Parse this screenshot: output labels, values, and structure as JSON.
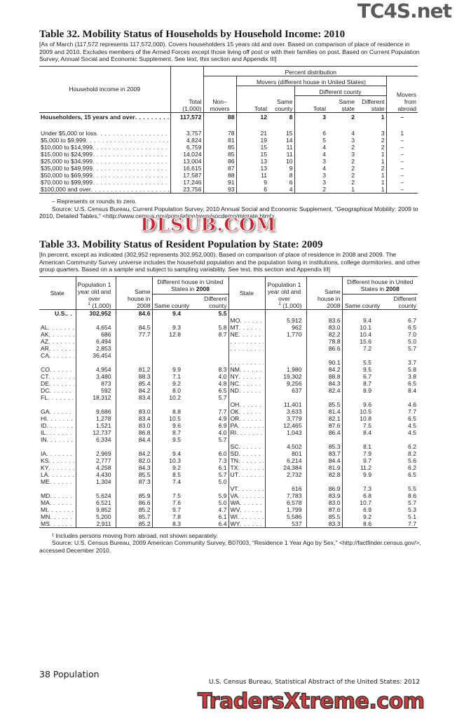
{
  "table32": {
    "title": "Table 32. Mobility Status of Households by Household Income: 2010",
    "headnote": "[As of March (117,572 represents 117,572,000). Covers householders 15 years old and over. Based on comparison of place of residence in 2009 and 2010. Excludes members of the Armed Forces except those living off post or with their families on post. Based on Current Population Survey, Annual Social and Economic Supplement. See text, this section and Appendix III]",
    "headers": {
      "label": "Household income in 2009",
      "total": "Total (1,000)",
      "percent_distribution": "Percent distribution",
      "nonmovers": "Non– movers",
      "movers": "Movers (different house in United States)",
      "movers_total": "Total",
      "same_county": "Same county",
      "different_county": "Different county",
      "dc_total": "Total",
      "same_state": "Same state",
      "different_state": "Different state",
      "abroad": "Movers from abroad"
    },
    "total_row": [
      "Householders, 15 years and over",
      "117,572",
      "88",
      "12",
      "8",
      "3",
      "2",
      "1",
      "–"
    ],
    "rows": [
      [
        "Under $5,000 or loss",
        "3,757",
        "78",
        "21",
        "15",
        "6",
        "4",
        "3",
        "1"
      ],
      [
        "$5,000 to $9,999",
        "4,824",
        "81",
        "19",
        "14",
        "5",
        "3",
        "2",
        "–"
      ],
      [
        "$10,000 to $14,999",
        "6,759",
        "85",
        "15",
        "11",
        "4",
        "2",
        "2",
        "–"
      ],
      [
        "$15,000 to $24,999",
        "14,024",
        "85",
        "15",
        "11",
        "4",
        "3",
        "1",
        "–"
      ],
      [
        "$25,000 to $34,999",
        "13,004",
        "86",
        "13",
        "10",
        "3",
        "2",
        "1",
        "–"
      ],
      [
        "$35,000 to $49,999",
        "16,615",
        "87",
        "13",
        "9",
        "4",
        "2",
        "2",
        "–"
      ],
      [
        "$50,000 to $69,999",
        "17,587",
        "88",
        "11",
        "8",
        "3",
        "2",
        "1",
        "–"
      ],
      [
        "$70,000 to $99,999",
        "17,246",
        "91",
        "9",
        "6",
        "3",
        "2",
        "1",
        "–"
      ],
      [
        "$100,000 and over",
        "23,756",
        "93",
        "6",
        "4",
        "2",
        "1",
        "1",
        "–"
      ]
    ],
    "notes": [
      "– Represents or rounds to zero.",
      "Source: U.S. Census Bureau, Current Population Survey, 2010 Annual Social and Economic Supplement, “Geographical Mobility: 2009 to 2010, Detailed Tables,” <http://www.census.gov/population/www/socdemo/migrate.html>."
    ]
  },
  "table33": {
    "title": "Table 33. Mobility Status of Resident Population by State: 2009",
    "headnote": "[In percent, except as indicated (302,952 represents 302,952,000). Based on comparison of place of residence in 2008 and 2009. The American Community Survey universe includes the household population and the population living in institutions, college dormitories, and other group quarters. Based on a sample and subject to sampling variability. See text, this section and Appendix III]",
    "headers": {
      "state": "State",
      "population": "Population 1 year old and over",
      "population_unit": "(1,000)",
      "footnote_mark": "1",
      "same_house": "Same house in 2008",
      "different_house": "Different house in United States in",
      "different_house_year": "2008",
      "same_county": "Same county",
      "different_county": "Different county"
    },
    "left": [
      [
        "U.S.",
        "302,952",
        "84.6",
        "9.4",
        "5.5"
      ],
      null,
      [
        "AL",
        "4,654",
        "84.5",
        "9.3",
        "5.8"
      ],
      [
        "AK",
        "686",
        "77.7",
        "12.8",
        "8.7"
      ],
      [
        "AZ",
        "6,494",
        "",
        "",
        ""
      ],
      [
        "AR",
        "2,853",
        "",
        "",
        ""
      ],
      [
        "CA",
        "36,454",
        "",
        "",
        ""
      ],
      null,
      [
        "CO",
        "4,954",
        "81.2",
        "9.9",
        "8.3"
      ],
      [
        "CT",
        "3,480",
        "88.3",
        "7.1",
        "4.0"
      ],
      [
        "DE",
        "873",
        "85.4",
        "9.2",
        "4.8"
      ],
      [
        "DC",
        "592",
        "84.2",
        "8.0",
        "6.5"
      ],
      [
        "FL",
        "18,312",
        "83.4",
        "10.2",
        "5.7"
      ],
      null,
      [
        "GA",
        "9,686",
        "83.0",
        "8.8",
        "7.7"
      ],
      [
        "HI",
        "1,278",
        "83.4",
        "10.5",
        "4.9"
      ],
      [
        "ID",
        "1,521",
        "83.0",
        "9.6",
        "6.9"
      ],
      [
        "IL",
        "12,737",
        "86.8",
        "8.7",
        "4.0"
      ],
      [
        "IN",
        "6,334",
        "84.4",
        "9.5",
        "5.7"
      ],
      null,
      [
        "IA",
        "2,969",
        "84.2",
        "9.4",
        "6.0"
      ],
      [
        "KS",
        "2,777",
        "82.0",
        "10.3",
        "7.3"
      ],
      [
        "KY",
        "4,258",
        "84.3",
        "9.2",
        "6.1"
      ],
      [
        "LA",
        "4,430",
        "85.5",
        "8.5",
        "5.7"
      ],
      [
        "ME",
        "1,304",
        "87.3",
        "7.4",
        "5.0"
      ],
      null,
      [
        "MD",
        "5,624",
        "85.9",
        "7.5",
        "5.9"
      ],
      [
        "MA",
        "6,521",
        "86.6",
        "7.6",
        "5.0"
      ],
      [
        "MI",
        "9,852",
        "85.2",
        "9.7",
        "4.7"
      ],
      [
        "MN",
        "5,200",
        "85.7",
        "7.8",
        "6.1"
      ],
      [
        "MS",
        "2,911",
        "85.2",
        "8.3",
        "6.4"
      ]
    ],
    "right": [
      null,
      [
        "MO",
        "5,912",
        "83.6",
        "9.4",
        "6.7"
      ],
      [
        "MT",
        "962",
        "83.0",
        "10.1",
        "6.5"
      ],
      [
        "NE",
        "1,770",
        "82.2",
        "10.4",
        "7.0"
      ],
      [
        "",
        "",
        "78.8",
        "15.6",
        "5.0"
      ],
      [
        "",
        "",
        "86.6",
        "7.2",
        "5.7"
      ],
      null,
      [
        "",
        "",
        "90.1",
        "5.5",
        "3.7"
      ],
      [
        "NM",
        "1,980",
        "84.2",
        "9.5",
        "5.8"
      ],
      [
        "NY",
        "19,302",
        "88.8",
        "6.7",
        "3.8"
      ],
      [
        "NC",
        "9,256",
        "84.3",
        "8.7",
        "6.5"
      ],
      [
        "ND",
        "637",
        "82.4",
        "8.9",
        "8.4"
      ],
      null,
      [
        "OH",
        "11,401",
        "85.5",
        "9.6",
        "4.6"
      ],
      [
        "OK",
        "3,633",
        "81.4",
        "10.5",
        "7.7"
      ],
      [
        "OR",
        "3,779",
        "82.1",
        "10.8",
        "6.5"
      ],
      [
        "PA",
        "12,465",
        "87.6",
        "7.5",
        "4.5"
      ],
      [
        "RI",
        "1,043",
        "86.4",
        "8.4",
        "4.5"
      ],
      null,
      [
        "SC",
        "4,502",
        "85.3",
        "8.1",
        "6.2"
      ],
      [
        "SD",
        "801",
        "83.7",
        "7.9",
        "8.2"
      ],
      [
        "TN",
        "6,214",
        "84.4",
        "9.7",
        "5.6"
      ],
      [
        "TX",
        "24,384",
        "81.9",
        "11.2",
        "6.2"
      ],
      [
        "UT",
        "2,732",
        "82.8",
        "9.9",
        "6.5"
      ],
      null,
      [
        "VT",
        "616",
        "86.9",
        "7.3",
        "5.5"
      ],
      [
        "VA",
        "7,783",
        "83.9",
        "6.8",
        "8.6"
      ],
      [
        "WA",
        "6,578",
        "83.0",
        "10.7",
        "5.7"
      ],
      [
        "WV",
        "1,799",
        "87.6",
        "6.9",
        "5.3"
      ],
      [
        "WI",
        "5,586",
        "85.5",
        "9.2",
        "5.1"
      ],
      [
        "WY",
        "537",
        "83.3",
        "8.6",
        "7.7"
      ]
    ],
    "notes": [
      "¹ Includes persons moving from abroad, not shown separately.",
      "Source: U.S. Census Bureau, 2009 American Community Survey, B07003, “Residence 1 Year Ago by Sex,” <http://factfinder.census.gov/>, accessed December 2010."
    ]
  },
  "footer": {
    "page": "38  Population",
    "publication": "U.S. Census Bureau, Statistical Abstract of the United States: 2012"
  },
  "watermarks": [
    "TC4S.net",
    "DLSUB.COM",
    "TradersXtreme.com"
  ]
}
